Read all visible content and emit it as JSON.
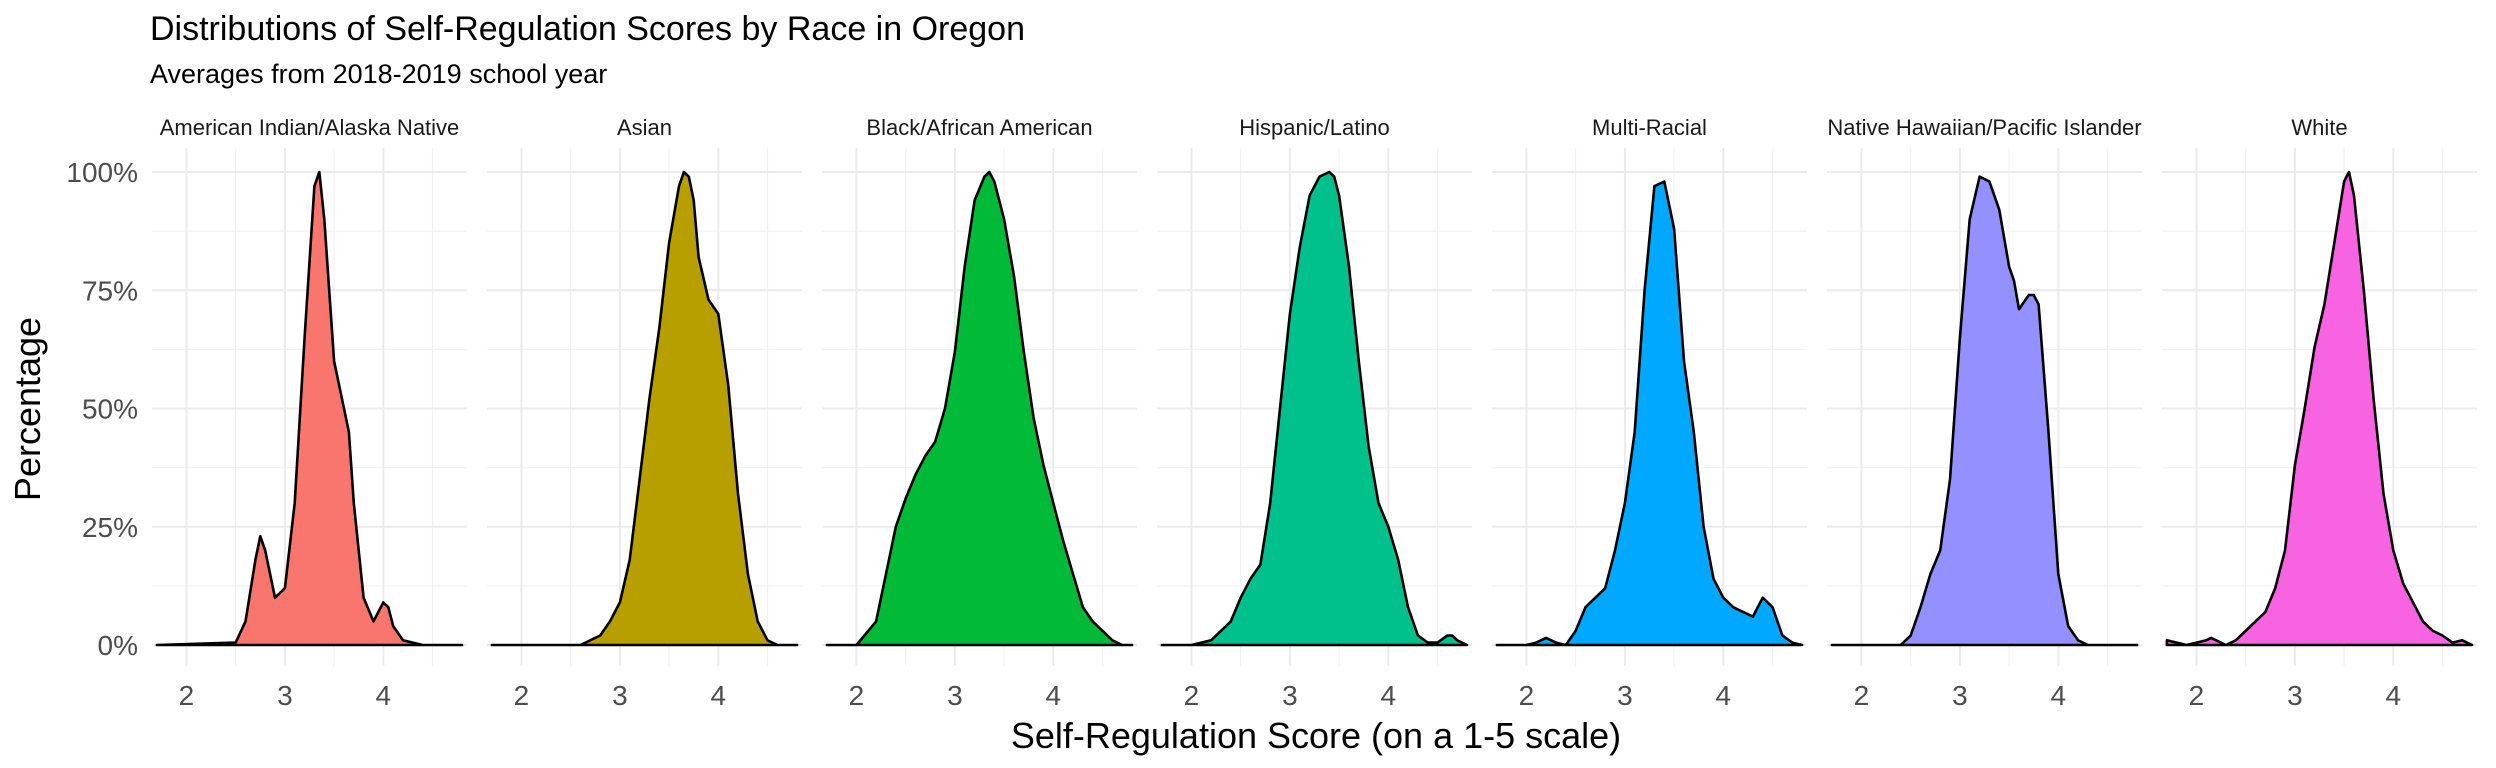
{
  "chart_data": {
    "type": "area",
    "title": "Distributions of Self-Regulation Scores by Race in Oregon",
    "subtitle": "Averages from 2018-2019 school year",
    "xlabel": "Self-Regulation Score (on a 1-5 scale)",
    "ylabel": "Percentage",
    "x_ticks": [
      "2",
      "3",
      "4"
    ],
    "y_ticks": [
      "0%",
      "25%",
      "50%",
      "75%",
      "100%"
    ],
    "xlim": [
      1.65,
      4.85
    ],
    "ylim": [
      0,
      1.0
    ],
    "grid": true,
    "legend": "none",
    "facets": [
      {
        "name": "American Indian/Alaska Native",
        "color": "#F8766D",
        "x": [
          1.7,
          2.5,
          2.6,
          2.7,
          2.75,
          2.8,
          2.9,
          3.0,
          3.1,
          3.2,
          3.3,
          3.35,
          3.4,
          3.5,
          3.6,
          3.65,
          3.7,
          3.8,
          3.9,
          4.0,
          4.05,
          4.1,
          4.2,
          4.4,
          4.8
        ],
        "y": [
          0.0,
          0.005,
          0.05,
          0.18,
          0.23,
          0.2,
          0.1,
          0.12,
          0.3,
          0.65,
          0.97,
          1.0,
          0.9,
          0.6,
          0.5,
          0.45,
          0.3,
          0.1,
          0.05,
          0.09,
          0.08,
          0.04,
          0.01,
          0.0,
          0.0
        ]
      },
      {
        "name": "Asian",
        "color": "#B79F00",
        "x": [
          1.7,
          2.6,
          2.8,
          2.9,
          3.0,
          3.1,
          3.2,
          3.3,
          3.4,
          3.5,
          3.6,
          3.65,
          3.7,
          3.75,
          3.8,
          3.9,
          4.0,
          4.1,
          4.2,
          4.3,
          4.4,
          4.5,
          4.6,
          4.8
        ],
        "y": [
          0.0,
          0.0,
          0.02,
          0.05,
          0.09,
          0.18,
          0.35,
          0.52,
          0.67,
          0.85,
          0.97,
          1.0,
          0.99,
          0.94,
          0.82,
          0.73,
          0.7,
          0.55,
          0.32,
          0.15,
          0.05,
          0.01,
          0.0,
          0.0
        ]
      },
      {
        "name": "Black/African American",
        "color": "#00BA38",
        "x": [
          1.7,
          2.0,
          2.2,
          2.3,
          2.4,
          2.5,
          2.6,
          2.7,
          2.8,
          2.9,
          3.0,
          3.1,
          3.2,
          3.3,
          3.35,
          3.4,
          3.5,
          3.6,
          3.7,
          3.8,
          3.9,
          4.0,
          4.1,
          4.2,
          4.3,
          4.4,
          4.5,
          4.6,
          4.7,
          4.8
        ],
        "y": [
          0.0,
          0.0,
          0.05,
          0.15,
          0.25,
          0.31,
          0.36,
          0.4,
          0.43,
          0.5,
          0.62,
          0.8,
          0.94,
          0.99,
          1.0,
          0.98,
          0.9,
          0.78,
          0.62,
          0.48,
          0.38,
          0.3,
          0.22,
          0.15,
          0.08,
          0.05,
          0.03,
          0.01,
          0.0,
          0.0
        ]
      },
      {
        "name": "Hispanic/Latino",
        "color": "#00C08B",
        "x": [
          1.7,
          2.0,
          2.2,
          2.4,
          2.5,
          2.6,
          2.7,
          2.8,
          2.9,
          3.0,
          3.1,
          3.2,
          3.3,
          3.4,
          3.45,
          3.5,
          3.6,
          3.7,
          3.8,
          3.9,
          4.0,
          4.1,
          4.2,
          4.3,
          4.4,
          4.5,
          4.6,
          4.65,
          4.7,
          4.8
        ],
        "y": [
          0.0,
          0.0,
          0.01,
          0.05,
          0.1,
          0.14,
          0.17,
          0.3,
          0.5,
          0.7,
          0.84,
          0.95,
          0.99,
          1.0,
          0.99,
          0.95,
          0.8,
          0.6,
          0.42,
          0.3,
          0.25,
          0.18,
          0.08,
          0.02,
          0.005,
          0.005,
          0.02,
          0.02,
          0.01,
          0.0
        ]
      },
      {
        "name": "Multi-Racial",
        "color": "#00A9FF",
        "x": [
          1.7,
          2.0,
          2.1,
          2.2,
          2.3,
          2.4,
          2.5,
          2.6,
          2.7,
          2.8,
          2.9,
          3.0,
          3.1,
          3.2,
          3.3,
          3.4,
          3.5,
          3.6,
          3.7,
          3.8,
          3.9,
          4.0,
          4.1,
          4.2,
          4.3,
          4.4,
          4.5,
          4.6,
          4.7,
          4.8
        ],
        "y": [
          0.0,
          0.0,
          0.005,
          0.015,
          0.005,
          0.0,
          0.03,
          0.08,
          0.1,
          0.12,
          0.2,
          0.3,
          0.45,
          0.75,
          0.97,
          0.98,
          0.88,
          0.6,
          0.45,
          0.25,
          0.14,
          0.1,
          0.08,
          0.07,
          0.06,
          0.1,
          0.08,
          0.02,
          0.005,
          0.0
        ]
      },
      {
        "name": "Native Hawaiian/Pacific Islander",
        "color": "#9590FF",
        "x": [
          1.7,
          2.4,
          2.5,
          2.6,
          2.7,
          2.8,
          2.9,
          3.0,
          3.1,
          3.2,
          3.3,
          3.4,
          3.5,
          3.55,
          3.6,
          3.7,
          3.75,
          3.8,
          3.9,
          4.0,
          4.1,
          4.2,
          4.3,
          4.4,
          4.8
        ],
        "y": [
          0.0,
          0.0,
          0.02,
          0.08,
          0.15,
          0.2,
          0.35,
          0.65,
          0.9,
          0.99,
          0.98,
          0.92,
          0.8,
          0.77,
          0.71,
          0.74,
          0.74,
          0.72,
          0.45,
          0.15,
          0.04,
          0.01,
          0.0,
          0.0,
          0.0
        ]
      },
      {
        "name": "White",
        "color": "#F763E0",
        "x": [
          1.7,
          1.8,
          1.9,
          2.0,
          2.1,
          2.15,
          2.2,
          2.3,
          2.4,
          2.5,
          2.6,
          2.7,
          2.8,
          2.9,
          3.0,
          3.1,
          3.2,
          3.3,
          3.4,
          3.5,
          3.55,
          3.6,
          3.7,
          3.8,
          3.9,
          4.0,
          4.1,
          4.2,
          4.3,
          4.4,
          4.5,
          4.6,
          4.7,
          4.8
        ],
        "y": [
          0.01,
          0.005,
          0.0,
          0.005,
          0.01,
          0.015,
          0.01,
          0.0,
          0.01,
          0.03,
          0.05,
          0.07,
          0.12,
          0.2,
          0.38,
          0.5,
          0.63,
          0.72,
          0.85,
          0.98,
          1.0,
          0.95,
          0.75,
          0.52,
          0.32,
          0.2,
          0.13,
          0.09,
          0.05,
          0.03,
          0.02,
          0.005,
          0.01,
          0.0
        ]
      }
    ]
  }
}
